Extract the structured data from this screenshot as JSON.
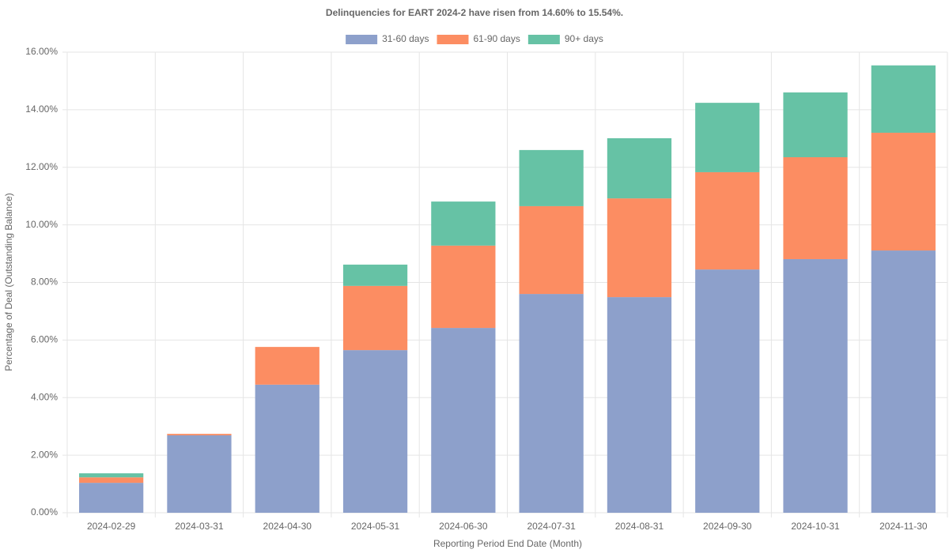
{
  "chart_data": {
    "type": "stacked-bar",
    "title": "Delinquencies for EART 2024-2 have risen from 14.60% to 15.54%.",
    "x_label": "Reporting Period End Date (Month)",
    "y_label": "Percentage of Deal (Outstanding Balance)",
    "categories": [
      "2024-02-29",
      "2024-03-31",
      "2024-04-30",
      "2024-05-31",
      "2024-06-30",
      "2024-07-31",
      "2024-08-31",
      "2024-09-30",
      "2024-10-31",
      "2024-11-30"
    ],
    "series": [
      {
        "name": "31-60 days",
        "color": "#8da0cb",
        "values": [
          1.04,
          2.69,
          4.45,
          5.65,
          6.42,
          7.6,
          7.49,
          8.45,
          8.81,
          9.11
        ]
      },
      {
        "name": "61-90 days",
        "color": "#fc8d62",
        "values": [
          0.19,
          0.05,
          1.31,
          2.23,
          2.86,
          3.05,
          3.43,
          3.38,
          3.54,
          4.09
        ]
      },
      {
        "name": "90+ days",
        "color": "#66c2a5",
        "values": [
          0.14,
          0,
          0,
          0.74,
          1.53,
          1.95,
          2.09,
          2.41,
          2.25,
          2.34
        ]
      }
    ],
    "ylim": [
      0,
      16
    ],
    "yticks": [
      {
        "value": 0,
        "label": "0.00%"
      },
      {
        "value": 2,
        "label": "2.00%"
      },
      {
        "value": 4,
        "label": "4.00%"
      },
      {
        "value": 6,
        "label": "6.00%"
      },
      {
        "value": 8,
        "label": "8.00%"
      },
      {
        "value": 10,
        "label": "10.00%"
      },
      {
        "value": 12,
        "label": "12.00%"
      },
      {
        "value": 14,
        "label": "14.00%"
      },
      {
        "value": 16,
        "label": "16.00%"
      }
    ],
    "grid": true,
    "legend": "top"
  }
}
